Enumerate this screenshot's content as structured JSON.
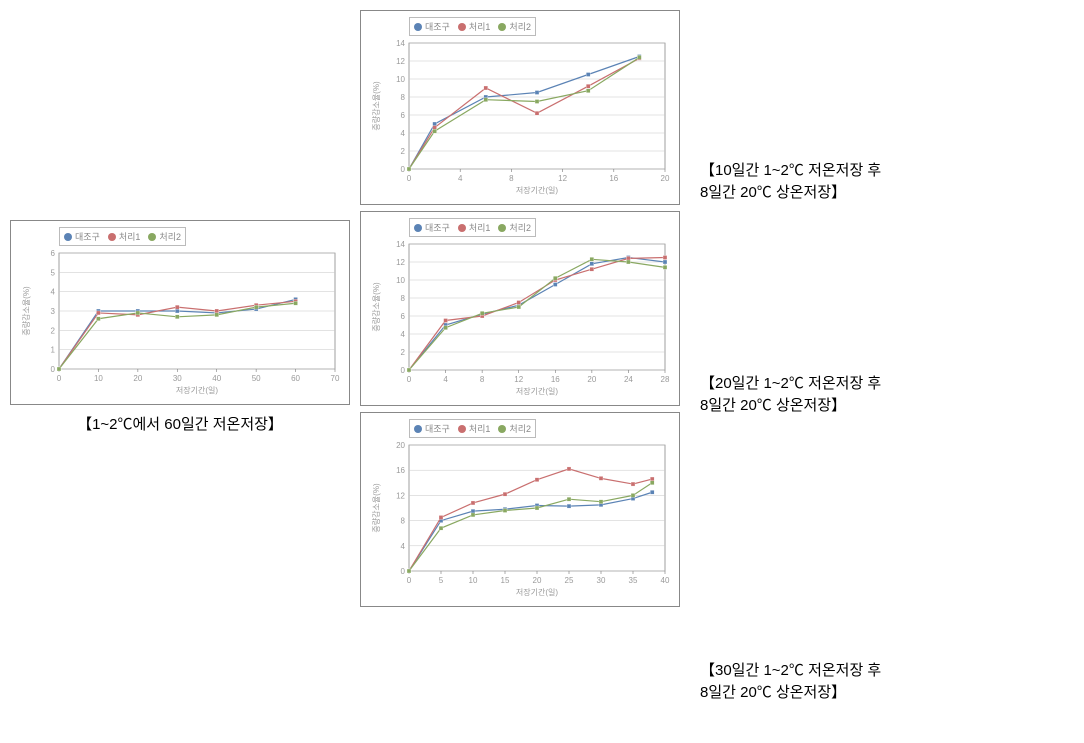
{
  "colors": {
    "frame_border": "#888888",
    "plot_bg": "#ffffff",
    "grid": "#c7c7c7",
    "axis": "#777777",
    "tick_label": "#9a9a9a",
    "axis_label": "#9a9a9a",
    "series1": "#5b83b5",
    "series2": "#c96f6f",
    "series3": "#89a861",
    "caption": "#000000",
    "legend_border": "#bbbbbb"
  },
  "typography": {
    "caption_fontsize_pt": 15,
    "tick_fontsize_pt": 8,
    "axis_label_fontsize_pt": 8,
    "legend_fontsize_pt": 9
  },
  "legend_items": [
    {
      "name": "대조구",
      "color": "#5b83b5"
    },
    {
      "name": "처리1",
      "color": "#c96f6f"
    },
    {
      "name": "처리2",
      "color": "#89a861"
    }
  ],
  "left_chart": {
    "type": "line",
    "x_label": "저장기간(일)",
    "y_label": "중량감소율(%)",
    "xlim": [
      0,
      70
    ],
    "ylim": [
      0,
      6
    ],
    "xtick_step": 10,
    "ytick_step": 1,
    "grid_y": true,
    "marker": "square",
    "marker_size": 4,
    "line_width": 1.2,
    "series": [
      {
        "name": "대조구",
        "color": "#5b83b5",
        "points": [
          [
            0,
            0
          ],
          [
            10,
            3.0
          ],
          [
            20,
            3.0
          ],
          [
            30,
            3.0
          ],
          [
            40,
            2.9
          ],
          [
            50,
            3.1
          ],
          [
            60,
            3.6
          ]
        ]
      },
      {
        "name": "처리1",
        "color": "#c96f6f",
        "points": [
          [
            0,
            0
          ],
          [
            10,
            2.9
          ],
          [
            20,
            2.8
          ],
          [
            30,
            3.2
          ],
          [
            40,
            3.0
          ],
          [
            50,
            3.3
          ],
          [
            60,
            3.5
          ]
        ]
      },
      {
        "name": "처리2",
        "color": "#89a861",
        "points": [
          [
            0,
            0
          ],
          [
            10,
            2.6
          ],
          [
            20,
            2.9
          ],
          [
            30,
            2.7
          ],
          [
            40,
            2.8
          ],
          [
            50,
            3.2
          ],
          [
            60,
            3.4
          ]
        ]
      }
    ]
  },
  "right_charts": [
    {
      "type": "line",
      "x_label": "저장기간(일)",
      "y_label": "중량감소율(%)",
      "xlim": [
        0,
        20
      ],
      "ylim": [
        0,
        14
      ],
      "xtick_step": 4,
      "ytick_step": 2,
      "grid_y": true,
      "marker": "square",
      "marker_size": 4,
      "line_width": 1.2,
      "series": [
        {
          "name": "대조구",
          "color": "#5b83b5",
          "points": [
            [
              0,
              0
            ],
            [
              2,
              5
            ],
            [
              6,
              8
            ],
            [
              10,
              8.5
            ],
            [
              14,
              10.5
            ],
            [
              18,
              12.5
            ]
          ]
        },
        {
          "name": "처리1",
          "color": "#c96f6f",
          "points": [
            [
              0,
              0
            ],
            [
              2,
              4.6
            ],
            [
              6,
              9
            ],
            [
              10,
              6.2
            ],
            [
              14,
              9.2
            ],
            [
              18,
              12.3
            ]
          ]
        },
        {
          "name": "처리2",
          "color": "#89a861",
          "points": [
            [
              0,
              0
            ],
            [
              2,
              4.2
            ],
            [
              6,
              7.7
            ],
            [
              10,
              7.5
            ],
            [
              14,
              8.7
            ],
            [
              18,
              12.4
            ]
          ]
        }
      ]
    },
    {
      "type": "line",
      "x_label": "저장기간(일)",
      "y_label": "중량감소율(%)",
      "xlim": [
        0,
        28
      ],
      "ylim": [
        0,
        14
      ],
      "xtick_step": 4,
      "ytick_step": 2,
      "grid_y": true,
      "marker": "square",
      "marker_size": 4,
      "line_width": 1.2,
      "series": [
        {
          "name": "대조구",
          "color": "#5b83b5",
          "points": [
            [
              0,
              0
            ],
            [
              4,
              5
            ],
            [
              8,
              6.2
            ],
            [
              12,
              7.2
            ],
            [
              16,
              9.5
            ],
            [
              20,
              11.8
            ],
            [
              24,
              12.5
            ],
            [
              28,
              12.0
            ]
          ]
        },
        {
          "name": "처리1",
          "color": "#c96f6f",
          "points": [
            [
              0,
              0
            ],
            [
              4,
              5.5
            ],
            [
              8,
              6.0
            ],
            [
              12,
              7.5
            ],
            [
              16,
              10.0
            ],
            [
              20,
              11.2
            ],
            [
              24,
              12.4
            ],
            [
              28,
              12.5
            ]
          ]
        },
        {
          "name": "처리2",
          "color": "#89a861",
          "points": [
            [
              0,
              0
            ],
            [
              4,
              4.7
            ],
            [
              8,
              6.3
            ],
            [
              12,
              7.0
            ],
            [
              16,
              10.2
            ],
            [
              20,
              12.3
            ],
            [
              24,
              12.0
            ],
            [
              28,
              11.4
            ]
          ]
        }
      ]
    },
    {
      "type": "line",
      "x_label": "저장기간(일)",
      "y_label": "중량감소율(%)",
      "xlim": [
        0,
        40
      ],
      "ylim": [
        0,
        20
      ],
      "xtick_step": 5,
      "ytick_step": 4,
      "grid_y": true,
      "marker": "square",
      "marker_size": 4,
      "line_width": 1.2,
      "series": [
        {
          "name": "대조구",
          "color": "#5b83b5",
          "points": [
            [
              0,
              0
            ],
            [
              5,
              8
            ],
            [
              10,
              9.5
            ],
            [
              15,
              9.8
            ],
            [
              20,
              10.4
            ],
            [
              25,
              10.3
            ],
            [
              30,
              10.5
            ],
            [
              35,
              11.5
            ],
            [
              38,
              12.5
            ]
          ]
        },
        {
          "name": "처리1",
          "color": "#c96f6f",
          "points": [
            [
              0,
              0
            ],
            [
              5,
              8.5
            ],
            [
              10,
              10.8
            ],
            [
              15,
              12.2
            ],
            [
              20,
              14.5
            ],
            [
              25,
              16.2
            ],
            [
              30,
              14.7
            ],
            [
              35,
              13.8
            ],
            [
              38,
              14.6
            ]
          ]
        },
        {
          "name": "처리2",
          "color": "#89a861",
          "points": [
            [
              0,
              0
            ],
            [
              5,
              6.8
            ],
            [
              10,
              8.9
            ],
            [
              15,
              9.6
            ],
            [
              20,
              10.0
            ],
            [
              25,
              11.4
            ],
            [
              30,
              11.0
            ],
            [
              35,
              12.0
            ],
            [
              38,
              14.0
            ]
          ]
        }
      ]
    }
  ],
  "captions": {
    "left": "【1~2℃에서 60일간 저온저장】",
    "right": [
      "【10일간 1~2℃ 저온저장 후\n8일간 20℃ 상온저장】",
      "【20일간 1~2℃ 저온저장 후\n8일간 20℃ 상온저장】",
      "【30일간 1~2℃ 저온저장 후\n8일간 20℃ 상온저장】"
    ]
  }
}
